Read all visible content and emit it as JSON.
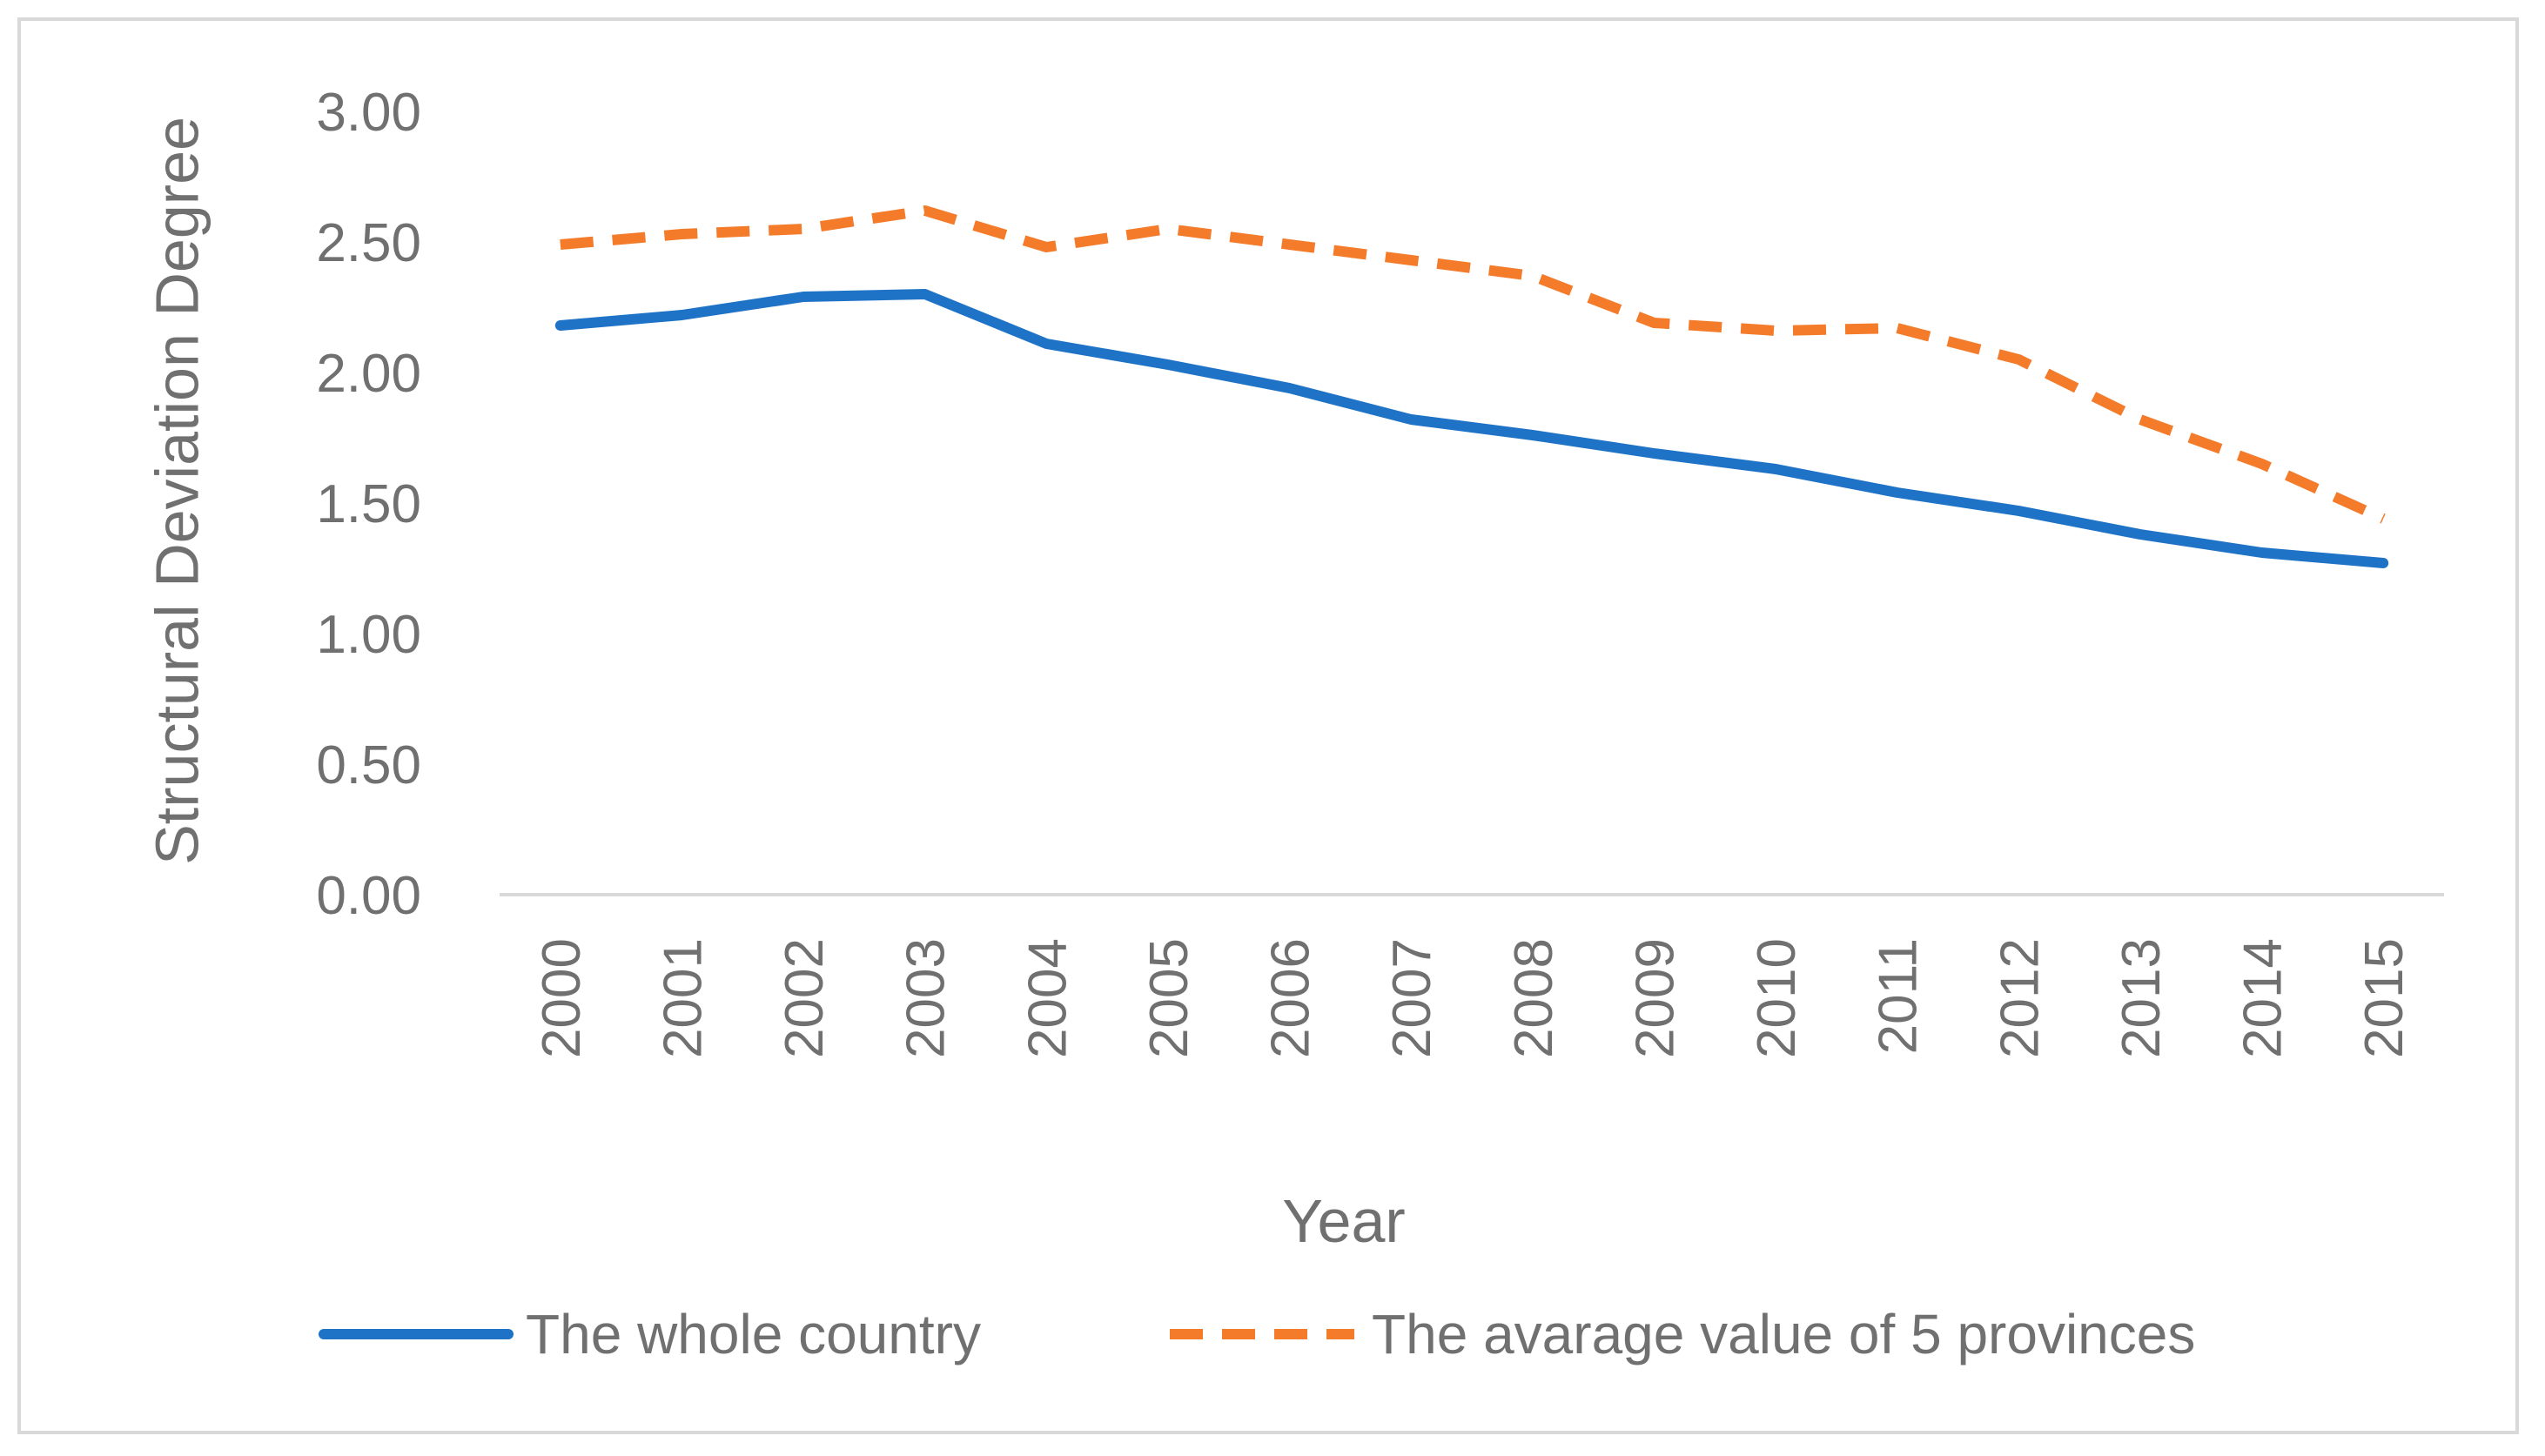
{
  "chart_data": {
    "type": "line",
    "title": "",
    "xlabel": "Year",
    "ylabel": "Structural Deviation Degree",
    "categories": [
      "2000",
      "2001",
      "2002",
      "2003",
      "2004",
      "2005",
      "2006",
      "2007",
      "2008",
      "2009",
      "2010",
      "2011",
      "2012",
      "2013",
      "2014",
      "2015"
    ],
    "ylim": [
      0,
      3
    ],
    "yticks": [
      "0.00",
      "0.50",
      "1.00",
      "1.50",
      "2.00",
      "2.50",
      "3.00"
    ],
    "grid": false,
    "legend_position": "bottom",
    "series": [
      {
        "name": "The whole country",
        "color": "#1f73c7",
        "style": "solid",
        "values": [
          2.18,
          2.22,
          2.29,
          2.3,
          2.11,
          2.03,
          1.94,
          1.82,
          1.76,
          1.69,
          1.63,
          1.54,
          1.47,
          1.38,
          1.31,
          1.27
        ]
      },
      {
        "name": "The avarage value of 5 provinces",
        "color": "#f47b2a",
        "style": "dashed",
        "values": [
          2.49,
          2.53,
          2.55,
          2.62,
          2.48,
          2.55,
          2.49,
          2.43,
          2.37,
          2.19,
          2.16,
          2.17,
          2.05,
          1.82,
          1.65,
          1.44
        ]
      }
    ]
  }
}
